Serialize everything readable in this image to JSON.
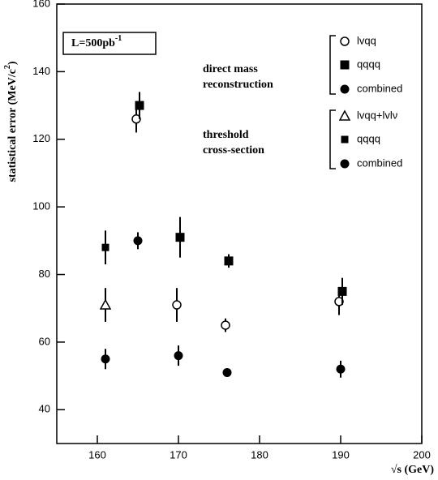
{
  "chart_data": {
    "type": "scatter",
    "xlabel": "√s (GeV)",
    "ylabel": {
      "text": "statistical error (MeV/c",
      "sup": "2",
      "tail": ")"
    },
    "luminosity": {
      "text": "L=500pb",
      "sup": "-1"
    },
    "groups": [
      {
        "lines": [
          "direct mass",
          "reconstruction"
        ]
      },
      {
        "lines": [
          "threshold",
          "cross-section"
        ]
      }
    ],
    "xlim": [
      155,
      200
    ],
    "xticks": [
      160,
      170,
      180,
      190,
      200
    ],
    "ylim": [
      30,
      160
    ],
    "yticks": [
      40,
      60,
      80,
      100,
      120,
      140,
      160
    ],
    "series": [
      {
        "name": "lvqq",
        "group": 0,
        "marker": "open-circle",
        "color": "#000000",
        "x": [
          164.8,
          169.8,
          175.8,
          189.8
        ],
        "values": [
          126,
          71,
          65,
          72
        ],
        "errors": [
          4,
          5,
          2,
          4
        ]
      },
      {
        "name": "qqqq",
        "group": 0,
        "marker": "square",
        "color": "#000000",
        "x": [
          165.2,
          170.2,
          176.2,
          190.2
        ],
        "values": [
          130,
          91,
          84,
          75
        ],
        "errors": [
          4,
          6,
          2,
          4
        ]
      },
      {
        "name": "combined",
        "group": 0,
        "marker": "circle",
        "color": "#000000",
        "x": [
          165,
          170,
          176,
          190
        ],
        "values": [
          90,
          56,
          51,
          52
        ],
        "errors": [
          2.5,
          3,
          1,
          2.5
        ]
      },
      {
        "name": "lvqq+lvlν",
        "group": 1,
        "marker": "open-triangle",
        "color": "#000000",
        "x": [
          161
        ],
        "values": [
          71
        ],
        "errors": [
          5
        ]
      },
      {
        "name": "qqqq",
        "group": 1,
        "marker": "small-square",
        "color": "#000000",
        "x": [
          161
        ],
        "values": [
          88
        ],
        "errors": [
          5
        ]
      },
      {
        "name": "combined",
        "group": 1,
        "marker": "circle",
        "color": "#000000",
        "x": [
          161
        ],
        "values": [
          55
        ],
        "errors": [
          3
        ]
      }
    ]
  }
}
